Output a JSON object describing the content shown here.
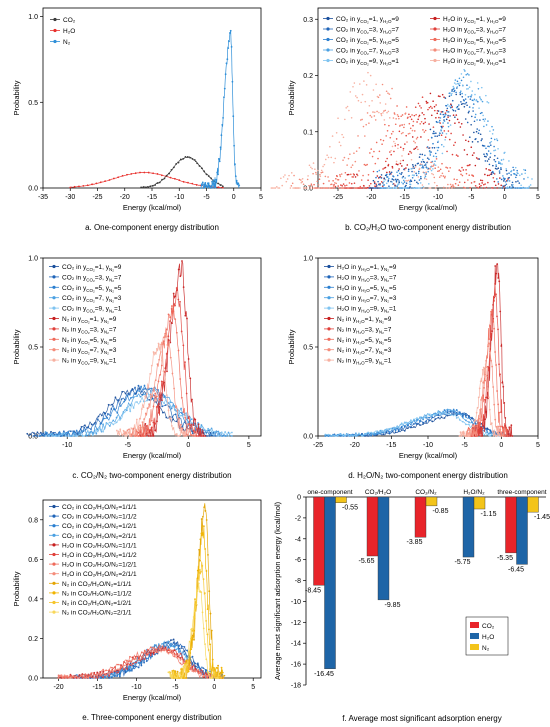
{
  "colors": {
    "co2": "#3a3a3a",
    "h2o": "#e8302c",
    "n2": "#2f8fd8",
    "blue_series": [
      "#1a4f9c",
      "#1f64b8",
      "#2b7fd0",
      "#4aa0e2",
      "#7ec3f0"
    ],
    "red_series": [
      "#c71f1f",
      "#e0403a",
      "#ef6a5a",
      "#f48c7a",
      "#f7b0a0"
    ],
    "yellow_series": [
      "#e3a400",
      "#f0b400",
      "#f5c52a",
      "#f8d75a"
    ],
    "bar_co2": "#e8242a",
    "bar_h2o": "#1e65a7",
    "bar_n2": "#f3c41a"
  },
  "panels": [
    {
      "id": "a",
      "caption": "a. One-component energy distribution",
      "ylabel": "Probability",
      "xlabel": "Energy (kcal/mol)",
      "xticks": [
        "-35",
        "-30",
        "-25",
        "-20",
        "-15",
        "-10",
        "-5",
        "0",
        "5"
      ],
      "yticks": [
        "0.0",
        "0.5",
        "1.0"
      ],
      "legend": [
        "CO₂",
        "H₂O",
        "N₂"
      ]
    },
    {
      "id": "b",
      "caption": "b. CO₂/H₂O two-component energy distribution",
      "ylabel": "Probability",
      "xlabel": "Energy (kcal/mol)",
      "xticks": [
        "-25",
        "-20",
        "-15",
        "-10",
        "-5",
        "0",
        "5"
      ],
      "yticks": [
        "0.0",
        "0.1",
        "0.2",
        "0.3"
      ],
      "legend_left": [
        {
          "base": "CO₂ in y",
          "s1": "CO₂",
          "v1": "=1, y",
          "s2": "H₂O",
          "v2": "=9"
        },
        {
          "base": "CO₂ in y",
          "s1": "CO₂",
          "v1": "=3, y",
          "s2": "H₂O",
          "v2": "=7"
        },
        {
          "base": "CO₂ in y",
          "s1": "CO₂",
          "v1": "=5, y",
          "s2": "H₂O",
          "v2": "=5"
        },
        {
          "base": "CO₂ in y",
          "s1": "CO₂",
          "v1": "=7, y",
          "s2": "H₂O",
          "v2": "=3"
        },
        {
          "base": "CO₂ in y",
          "s1": "CO₂",
          "v1": "=9, y",
          "s2": "H₂O",
          "v2": "=1"
        }
      ],
      "legend_right": [
        {
          "base": "H₂O in y",
          "s1": "CO₂",
          "v1": "=1, y",
          "s2": "H₂O",
          "v2": "=9"
        },
        {
          "base": "H₂O in y",
          "s1": "CO₂",
          "v1": "=3, y",
          "s2": "H₂O",
          "v2": "=7"
        },
        {
          "base": "H₂O in y",
          "s1": "CO₂",
          "v1": "=5, y",
          "s2": "H₂O",
          "v2": "=5"
        },
        {
          "base": "H₂O in y",
          "s1": "CO₂",
          "v1": "=7, y",
          "s2": "H₂O",
          "v2": "=3"
        },
        {
          "base": "H₂O in y",
          "s1": "CO₂",
          "v1": "=9, y",
          "s2": "H₂O",
          "v2": "=1"
        }
      ]
    },
    {
      "id": "c",
      "caption": "c. CO₂/N₂ two-component energy distribution",
      "ylabel": "Probability",
      "xlabel": "Energy (kcal/mol)",
      "xticks": [
        "-10",
        "-5",
        "0",
        "5"
      ],
      "yticks": [
        "0.0",
        "0.5",
        "1.0"
      ],
      "legend": [
        {
          "base": "CO₂ in y",
          "s1": "CO₂",
          "v1": "=1, y",
          "s2": "N₂",
          "v2": "=9"
        },
        {
          "base": "CO₂ in y",
          "s1": "CO₂",
          "v1": "=3, y",
          "s2": "N₂",
          "v2": "=7"
        },
        {
          "base": "CO₂ in y",
          "s1": "CO₂",
          "v1": "=5, y",
          "s2": "N₂",
          "v2": "=5"
        },
        {
          "base": "CO₂ in y",
          "s1": "CO₂",
          "v1": "=7, y",
          "s2": "N₂",
          "v2": "=3"
        },
        {
          "base": "CO₂ in y",
          "s1": "CO₂",
          "v1": "=9, y",
          "s2": "N₂",
          "v2": "=1"
        },
        {
          "base": "N₂ in y",
          "s1": "CO₂",
          "v1": "=1, y",
          "s2": "N₂",
          "v2": "=9"
        },
        {
          "base": "N₂ in y",
          "s1": "CO₂",
          "v1": "=3, y",
          "s2": "N₂",
          "v2": "=7"
        },
        {
          "base": "N₂ in y",
          "s1": "CO₂",
          "v1": "=5, y",
          "s2": "N₂",
          "v2": "=5"
        },
        {
          "base": "N₂ in y",
          "s1": "CO₂",
          "v1": "=7, y",
          "s2": "N₂",
          "v2": "=3"
        },
        {
          "base": "N₂ in y",
          "s1": "CO₂",
          "v1": "=9, y",
          "s2": "N₂",
          "v2": "=1"
        }
      ]
    },
    {
      "id": "d",
      "caption": "d. H₂O/N₂ two-component energy distribution",
      "ylabel": "Probability",
      "xlabel": "Energy (kcal/mol)",
      "xticks": [
        "-25",
        "-20",
        "-15",
        "-10",
        "-5",
        "0",
        "5"
      ],
      "yticks": [
        "0.0",
        "0.5",
        "1.0"
      ],
      "legend": [
        {
          "base": "H₂O in y",
          "s1": "H₂O",
          "v1": "=1, y",
          "s2": "N₂",
          "v2": "=9"
        },
        {
          "base": "H₂O in y",
          "s1": "H₂O",
          "v1": "=3, y",
          "s2": "N₂",
          "v2": "=7"
        },
        {
          "base": "H₂O in y",
          "s1": "H₂O",
          "v1": "=5, y",
          "s2": "N₂",
          "v2": "=5"
        },
        {
          "base": "H₂O in y",
          "s1": "H₂O",
          "v1": "=7, y",
          "s2": "N₂",
          "v2": "=3"
        },
        {
          "base": "H₂O in y",
          "s1": "H₂O",
          "v1": "=9, y",
          "s2": "N₂",
          "v2": "=1"
        },
        {
          "base": "N₂ in y",
          "s1": "H₂O",
          "v1": "=1, y",
          "s2": "N₂",
          "v2": "=9"
        },
        {
          "base": "N₂ in y",
          "s1": "H₂O",
          "v1": "=3, y",
          "s2": "N₂",
          "v2": "=7"
        },
        {
          "base": "N₂ in y",
          "s1": "H₂O",
          "v1": "=5, y",
          "s2": "N₂",
          "v2": "=5"
        },
        {
          "base": "N₂ in y",
          "s1": "H₂O",
          "v1": "=7, y",
          "s2": "N₂",
          "v2": "=3"
        },
        {
          "base": "N₂ in y",
          "s1": "H₂O",
          "v1": "=9, y",
          "s2": "N₂",
          "v2": "=1"
        }
      ]
    },
    {
      "id": "e",
      "caption": "e. Three-component energy distribution",
      "ylabel": "Probability",
      "xlabel": "Energy (kcal/mol)",
      "xticks": [
        "-20",
        "-15",
        "-10",
        "-5",
        "0",
        "5"
      ],
      "yticks": [
        "0.0",
        "0.2",
        "0.4",
        "0.6",
        "0.8"
      ],
      "legend": [
        "CO₂ in CO₂/H₂O/N₂=1/1/1",
        "CO₂ in CO₂/H₂O/N₂=1/1/2",
        "CO₂ in CO₂/H₂O/N₂=1/2/1",
        "CO₂ in CO₂/H₂O/N₂=2/1/1",
        "H₂O in CO₂/H₂O/N₂=1/1/1",
        "H₂O in CO₂/H₂O/N₂=1/1/2",
        "H₂O in CO₂/H₂O/N₂=1/2/1",
        "H₂O in CO₂/H₂O/N₂=2/1/1",
        "N₂ in CO₂/H₂O/N₂=1/1/1",
        "N₂ in CO₂/H₂O/N₂=1/1/2",
        "N₂ in CO₂/H₂O/N₂=1/2/1",
        "N₂ in CO₂/H₂O/N₂=2/1/1"
      ]
    },
    {
      "id": "f",
      "caption": "f.  Average most significant adsorption energy",
      "ylabel": "Average most significant adsorption energy (kcal/mol)",
      "yticks": [
        "0",
        "-2",
        "-4",
        "-6",
        "-8",
        "-10",
        "-12",
        "-14",
        "-16",
        "-18"
      ],
      "legend": [
        "CO₂",
        "H₂O",
        "N₂"
      ]
    }
  ],
  "chart_data": [
    {
      "type": "line",
      "panel": "a",
      "xlabel": "Energy (kcal/mol)",
      "ylabel": "Probability",
      "xlim": [
        -35,
        5
      ],
      "ylim": [
        0,
        1.05
      ],
      "series": [
        {
          "name": "CO₂",
          "peak_x": -8.5,
          "peak_y": 0.18,
          "width": 2.8
        },
        {
          "name": "H₂O",
          "peak_x": -16.5,
          "peak_y": 0.09,
          "width": 5.5
        },
        {
          "name": "N₂",
          "peak_x": -0.6,
          "peak_y": 0.9,
          "width": 0.45
        }
      ]
    },
    {
      "type": "scatter",
      "panel": "b",
      "xlabel": "Energy (kcal/mol)",
      "ylabel": "Probability",
      "xlim": [
        -28,
        5
      ],
      "ylim": [
        0,
        0.32
      ],
      "series": [
        {
          "name": "CO₂ in yCO₂=1, yH₂O=9",
          "peak_x": -7.5,
          "peak_y": 0.15
        },
        {
          "name": "CO₂ in yCO₂=3, yH₂O=7",
          "peak_x": -7.0,
          "peak_y": 0.16
        },
        {
          "name": "CO₂ in yCO₂=5, yH₂O=5",
          "peak_x": -6.5,
          "peak_y": 0.17
        },
        {
          "name": "CO₂ in yCO₂=7, yH₂O=3",
          "peak_x": -6.0,
          "peak_y": 0.18
        },
        {
          "name": "CO₂ in yCO₂=9, yH₂O=1",
          "peak_x": -5.5,
          "peak_y": 0.19
        },
        {
          "name": "H₂O in yCO₂=1, yH₂O=9",
          "peak_x": -10.0,
          "peak_y": 0.15
        },
        {
          "name": "H₂O in yCO₂=3, yH₂O=7",
          "peak_x": -12.0,
          "peak_y": 0.14
        },
        {
          "name": "H₂O in yCO₂=5, yH₂O=5",
          "peak_x": -15.0,
          "peak_y": 0.13
        },
        {
          "name": "H₂O in yCO₂=7, yH₂O=3",
          "peak_x": -18.0,
          "peak_y": 0.16
        },
        {
          "name": "H₂O in yCO₂=9, yH₂O=1",
          "peak_x": -21.0,
          "peak_y": 0.18
        }
      ]
    },
    {
      "type": "line",
      "panel": "c",
      "xlabel": "Energy (kcal/mol)",
      "ylabel": "Probability",
      "xlim": [
        -12,
        6
      ],
      "ylim": [
        0,
        1.0
      ],
      "series": [
        {
          "name": "CO₂ in yCO₂=1, yN₂=9",
          "peak_x": -4.5,
          "peak_y": 0.25
        },
        {
          "name": "CO₂ in yCO₂=3, yN₂=7",
          "peak_x": -4.0,
          "peak_y": 0.26
        },
        {
          "name": "CO₂ in yCO₂=5, yN₂=5",
          "peak_x": -3.5,
          "peak_y": 0.27
        },
        {
          "name": "CO₂ in yCO₂=7, yN₂=3",
          "peak_x": -3.0,
          "peak_y": 0.25
        },
        {
          "name": "CO₂ in yCO₂=9, yN₂=1",
          "peak_x": -3.0,
          "peak_y": 0.22
        },
        {
          "name": "N₂ in yCO₂=1, yN₂=9",
          "peak_x": -0.6,
          "peak_y": 0.95
        },
        {
          "name": "N₂ in yCO₂=3, yN₂=7",
          "peak_x": -0.9,
          "peak_y": 0.78
        },
        {
          "name": "N₂ in yCO₂=5, yN₂=5",
          "peak_x": -1.3,
          "peak_y": 0.7
        },
        {
          "name": "N₂ in yCO₂=7, yN₂=3",
          "peak_x": -1.8,
          "peak_y": 0.55
        },
        {
          "name": "N₂ in yCO₂=9, yN₂=1",
          "peak_x": -2.4,
          "peak_y": 0.5
        }
      ]
    },
    {
      "type": "line",
      "panel": "d",
      "xlabel": "Energy (kcal/mol)",
      "ylabel": "Probability",
      "xlim": [
        -25,
        5
      ],
      "ylim": [
        0,
        1.0
      ],
      "series": [
        {
          "name": "H₂O in yH₂O=1, yN₂=9",
          "peak_x": -5.5,
          "peak_y": 0.12
        },
        {
          "name": "H₂O in yH₂O=3, yN₂=7",
          "peak_x": -6.0,
          "peak_y": 0.13
        },
        {
          "name": "H₂O in yH₂O=5, yN₂=5",
          "peak_x": -6.5,
          "peak_y": 0.14
        },
        {
          "name": "H₂O in yH₂O=7, yN₂=3",
          "peak_x": -7.0,
          "peak_y": 0.14
        },
        {
          "name": "H₂O in yH₂O=9, yN₂=1",
          "peak_x": -7.5,
          "peak_y": 0.13
        },
        {
          "name": "N₂ in yH₂O=1, yN₂=9",
          "peak_x": -0.5,
          "peak_y": 0.97
        },
        {
          "name": "N₂ in yH₂O=3, yN₂=7",
          "peak_x": -0.8,
          "peak_y": 0.82
        },
        {
          "name": "N₂ in yH₂O=5, yN₂=5",
          "peak_x": -1.2,
          "peak_y": 0.7
        },
        {
          "name": "N₂ in yH₂O=7, yN₂=3",
          "peak_x": -1.6,
          "peak_y": 0.5
        },
        {
          "name": "N₂ in yH₂O=9, yN₂=1",
          "peak_x": -2.2,
          "peak_y": 0.38
        }
      ]
    },
    {
      "type": "line",
      "panel": "e",
      "xlabel": "Energy (kcal/mol)",
      "ylabel": "Probability",
      "xlim": [
        -22,
        6
      ],
      "ylim": [
        0,
        0.9
      ],
      "series": [
        {
          "name": "CO₂ in CO₂/H₂O/N₂=1/1/1",
          "peak_x": -5.5,
          "peak_y": 0.18
        },
        {
          "name": "CO₂ in CO₂/H₂O/N₂=1/1/2",
          "peak_x": -5.0,
          "peak_y": 0.17
        },
        {
          "name": "CO₂ in CO₂/H₂O/N₂=1/2/1",
          "peak_x": -5.5,
          "peak_y": 0.16
        },
        {
          "name": "CO₂ in CO₂/H₂O/N₂=2/1/1",
          "peak_x": -6.0,
          "peak_y": 0.17
        },
        {
          "name": "H₂O in CO₂/H₂O/N₂=1/1/1",
          "peak_x": -6.5,
          "peak_y": 0.15
        },
        {
          "name": "H₂O in CO₂/H₂O/N₂=1/1/2",
          "peak_x": -6.0,
          "peak_y": 0.14
        },
        {
          "name": "H₂O in CO₂/H₂O/N₂=1/2/1",
          "peak_x": -7.0,
          "peak_y": 0.15
        },
        {
          "name": "H₂O in CO₂/H₂O/N₂=2/1/1",
          "peak_x": -6.5,
          "peak_y": 0.14
        },
        {
          "name": "N₂ in CO₂/H₂O/N₂=1/1/1",
          "peak_x": -1.2,
          "peak_y": 0.83
        },
        {
          "name": "N₂ in CO₂/H₂O/N₂=1/1/2",
          "peak_x": -1.4,
          "peak_y": 0.72
        },
        {
          "name": "N₂ in CO₂/H₂O/N₂=1/2/1",
          "peak_x": -1.6,
          "peak_y": 0.55
        },
        {
          "name": "N₂ in CO₂/H₂O/N₂=2/1/1",
          "peak_x": -1.9,
          "peak_y": 0.45
        }
      ]
    },
    {
      "type": "bar",
      "panel": "f",
      "ylabel": "Average most significant adsorption energy (kcal/mol)",
      "ylim": [
        -18,
        0
      ],
      "categories": [
        "one-component",
        "CO₂/H₂O",
        "CO₂/N₂",
        "H₂O/N₂",
        "three-component"
      ],
      "series": [
        {
          "name": "CO₂",
          "values": [
            -8.45,
            -5.65,
            -3.85,
            null,
            -5.35
          ]
        },
        {
          "name": "H₂O",
          "values": [
            -16.45,
            -9.85,
            null,
            -5.75,
            -6.45
          ]
        },
        {
          "name": "N₂",
          "values": [
            -0.55,
            null,
            -0.85,
            -1.15,
            -1.45
          ]
        }
      ],
      "labels": [
        [
          "-8.45",
          "-5.65",
          "-3.85",
          "",
          "-5.35"
        ],
        [
          "-16.45",
          "-9.85",
          "",
          "-5.75",
          "-6.45"
        ],
        [
          "-0.55",
          "",
          "-0.85",
          "-1.15",
          "-1.45"
        ]
      ]
    }
  ]
}
